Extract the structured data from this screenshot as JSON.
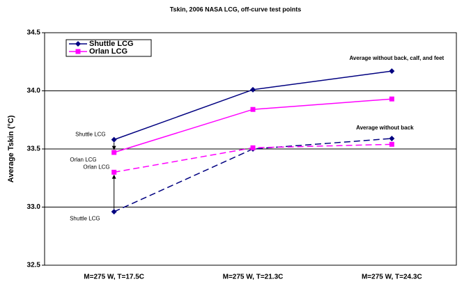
{
  "chart_data": {
    "type": "line",
    "title": "Tskin, 2006 NASA LCG, off-curve test points",
    "y_label": "Average Tskin (°C)",
    "categories": [
      "M=275 W, T=17.5C",
      "M=275 W, T=21.3C",
      "M=275 W, T=24.3C"
    ],
    "series": [
      {
        "name": "Shuttle LCG",
        "color": "#000080",
        "marker": "diamond",
        "dash": false,
        "values": [
          33.58,
          34.01,
          34.17
        ]
      },
      {
        "name": "Orlan LCG",
        "color": "#ff00ff",
        "marker": "square",
        "dash": false,
        "values": [
          33.47,
          33.84,
          33.93
        ]
      },
      {
        "color": "#000080",
        "marker": "diamond",
        "dash": true,
        "values": [
          32.96,
          33.5,
          33.59
        ]
      },
      {
        "color": "#ff00ff",
        "marker": "square",
        "dash": true,
        "values": [
          33.3,
          33.51,
          33.54
        ]
      }
    ],
    "ylim": [
      32.5,
      34.5
    ],
    "yticks": [
      {
        "value": 32.5,
        "label": "32.5"
      },
      {
        "value": 33,
        "label": "33.0"
      },
      {
        "value": 33.5,
        "label": "33.5"
      },
      {
        "value": 34,
        "label": "34.0"
      },
      {
        "value": 34.5,
        "label": "34.5"
      }
    ],
    "grid": true,
    "legend": "top-left",
    "annotations": [
      "Average without back, calf, and feet",
      "Average without back"
    ],
    "point_labels": [
      "Shuttle LCG",
      "Orlan LCG",
      "Orlan LCG",
      "Shuttle LCG"
    ]
  }
}
